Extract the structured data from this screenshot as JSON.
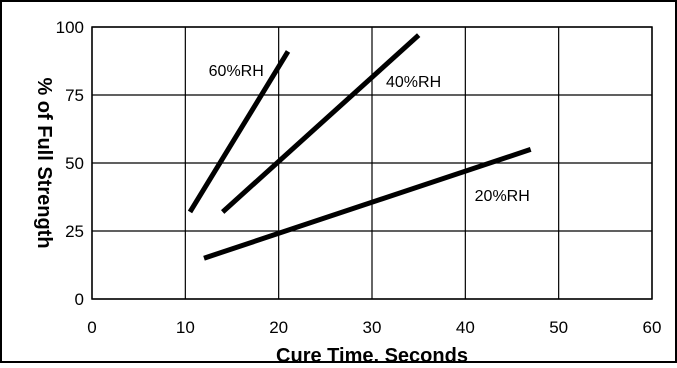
{
  "chart_data": {
    "type": "line",
    "xlabel": "Cure Time, Seconds",
    "ylabel": "% of Full Strength",
    "xlim": [
      0,
      60
    ],
    "ylim": [
      0,
      100
    ],
    "xticks": [
      "0",
      "10",
      "20",
      "30",
      "40",
      "50",
      "60"
    ],
    "yticks": [
      "0",
      "25",
      "50",
      "75",
      "100"
    ],
    "grid": true,
    "series": [
      {
        "name": "60%RH",
        "x": [
          10.5,
          21
        ],
        "y": [
          32,
          91
        ]
      },
      {
        "name": "40%RH",
        "x": [
          14,
          35
        ],
        "y": [
          32,
          97
        ]
      },
      {
        "name": "20%RH",
        "x": [
          12,
          47
        ],
        "y": [
          15,
          55
        ]
      }
    ],
    "line_color": "#000000"
  }
}
